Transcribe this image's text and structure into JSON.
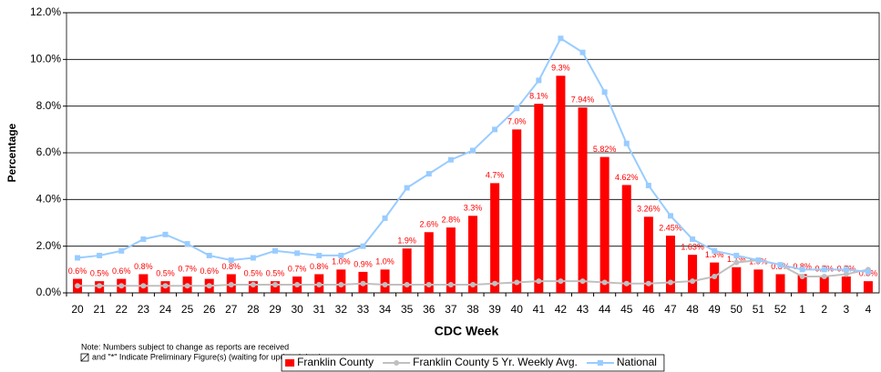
{
  "chart_data": {
    "type": "bar-line",
    "x_label": "CDC Week",
    "y_label": "Percentage",
    "notes": [
      "Note: Numbers subject to change as reports are received",
      "and \"*\" Indicate Preliminary Figure(s) (waiting for updated data)"
    ],
    "categories": [
      "20",
      "21",
      "22",
      "23",
      "24",
      "25",
      "26",
      "27",
      "28",
      "29",
      "30",
      "31",
      "32",
      "33",
      "34",
      "35",
      "36",
      "37",
      "38",
      "39",
      "40",
      "41",
      "42",
      "43",
      "44",
      "45",
      "46",
      "47",
      "48",
      "49",
      "50",
      "51",
      "52",
      "1",
      "2",
      "3",
      "4"
    ],
    "series": [
      {
        "name": "Franklin County",
        "color": "#ff0000",
        "kind": "bar",
        "values": [
          0.6,
          0.5,
          0.6,
          0.8,
          0.5,
          0.7,
          0.6,
          0.8,
          0.5,
          0.5,
          0.7,
          0.8,
          1.0,
          0.9,
          1.0,
          1.9,
          2.6,
          2.8,
          3.3,
          4.7,
          7.0,
          8.1,
          9.3,
          7.94,
          5.82,
          4.62,
          3.26,
          2.45,
          1.63,
          1.3,
          1.1,
          1.0,
          0.8,
          0.8,
          0.7,
          0.7,
          0.5
        ],
        "value_labels": [
          "0.6%",
          "0.5%",
          "0.6%",
          "0.8%",
          "0.5%",
          "0.7%",
          "0.6%",
          "0.8%",
          "0.5%",
          "0.5%",
          "0.7%",
          "0.8%",
          "1.0%",
          "0.9%",
          "1.0%",
          "1.9%",
          "2.6%",
          "2.8%",
          "3.3%",
          "4.7%",
          "7.0%",
          "8.1%",
          "9.3%",
          "7.94%",
          "5.82%",
          "4.62%",
          "3.26%",
          "2.45%",
          "1.63%",
          "1.3%",
          "1.1%",
          "1.0%",
          "0.8%",
          "0.8%",
          "0.7%",
          "0.7%",
          "0.5%"
        ]
      },
      {
        "name": "Franklin County 5 Yr. Weekly Avg.",
        "color": "#c0c0c0",
        "kind": "line",
        "marker": "circle",
        "values": [
          0.3,
          0.3,
          0.3,
          0.3,
          0.3,
          0.3,
          0.3,
          0.35,
          0.35,
          0.35,
          0.35,
          0.35,
          0.35,
          0.4,
          0.35,
          0.35,
          0.35,
          0.35,
          0.35,
          0.4,
          0.45,
          0.5,
          0.5,
          0.5,
          0.45,
          0.4,
          0.4,
          0.45,
          0.5,
          0.7,
          1.3,
          1.4,
          1.2,
          0.7,
          0.7,
          0.8,
          1.0
        ]
      },
      {
        "name": "National",
        "color": "#99ccff",
        "kind": "line",
        "marker": "square",
        "values": [
          1.5,
          1.6,
          1.8,
          2.3,
          2.5,
          2.1,
          1.6,
          1.4,
          1.5,
          1.8,
          1.7,
          1.6,
          1.6,
          2.0,
          3.2,
          4.5,
          5.1,
          5.7,
          6.1,
          7.0,
          7.9,
          9.1,
          10.9,
          10.3,
          8.6,
          6.4,
          4.6,
          3.3,
          2.3,
          1.8,
          1.6,
          1.4,
          1.2,
          1.0,
          1.0,
          1.0,
          0.9
        ]
      }
    ],
    "ylim": [
      0,
      12
    ],
    "yticks": [
      {
        "value": 0,
        "label": "0.0%"
      },
      {
        "value": 2,
        "label": "2.0%"
      },
      {
        "value": 4,
        "label": "4.0%"
      },
      {
        "value": 6,
        "label": "6.0%"
      },
      {
        "value": 8,
        "label": "8.0%"
      },
      {
        "value": 10,
        "label": "10.0%"
      },
      {
        "value": 12,
        "label": "12.0%"
      }
    ],
    "grid": true
  }
}
